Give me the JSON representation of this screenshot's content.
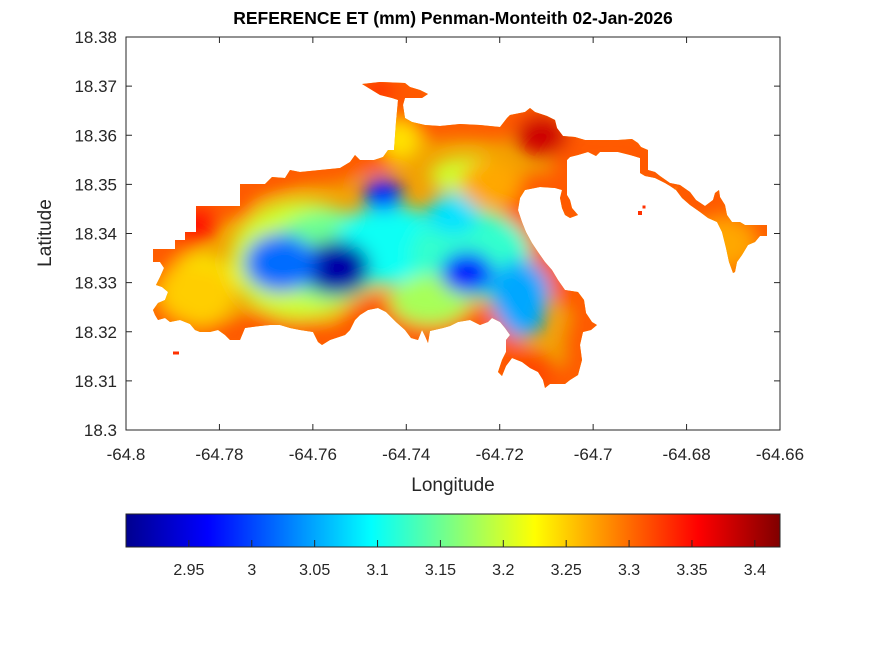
{
  "chart_data": {
    "type": "heatmap",
    "title": "REFERENCE ET (mm) Penman-Monteith 02-Jan-2026",
    "xlabel": "Longitude",
    "ylabel": "Latitude",
    "xlim": [
      -64.8,
      -64.66
    ],
    "ylim": [
      18.3,
      18.38
    ],
    "xticks": [
      -64.8,
      -64.78,
      -64.76,
      -64.74,
      -64.72,
      -64.7,
      -64.68,
      -64.66
    ],
    "xtick_labels": [
      "-64.8",
      "-64.78",
      "-64.76",
      "-64.74",
      "-64.72",
      "-64.7",
      "-64.68",
      "-64.66"
    ],
    "yticks": [
      18.3,
      18.31,
      18.32,
      18.33,
      18.34,
      18.35,
      18.36,
      18.37,
      18.38
    ],
    "ytick_labels": [
      "18.3",
      "18.31",
      "18.32",
      "18.33",
      "18.34",
      "18.35",
      "18.36",
      "18.37",
      "18.38"
    ],
    "grid": false,
    "colormap": "jet",
    "colorbar": {
      "location": "bottom",
      "range": [
        2.9,
        3.42
      ],
      "ticks": [
        2.95,
        3,
        3.05,
        3.1,
        3.15,
        3.2,
        3.25,
        3.3,
        3.35,
        3.4
      ],
      "tick_labels": [
        "2.95",
        "3",
        "3.05",
        "3.1",
        "3.15",
        "3.2",
        "3.25",
        "3.3",
        "3.35",
        "3.4"
      ]
    },
    "field_summary": [
      {
        "lon": -64.755,
        "lat": 18.333,
        "value": 2.92
      },
      {
        "lon": -64.745,
        "lat": 18.348,
        "value": 2.98
      },
      {
        "lon": -64.727,
        "lat": 18.332,
        "value": 2.98
      },
      {
        "lon": -64.767,
        "lat": 18.334,
        "value": 3.02
      },
      {
        "lon": -64.715,
        "lat": 18.322,
        "value": 3.05
      },
      {
        "lon": -64.73,
        "lat": 18.344,
        "value": 3.08
      },
      {
        "lon": -64.785,
        "lat": 18.328,
        "value": 3.25
      },
      {
        "lon": -64.722,
        "lat": 18.35,
        "value": 3.27
      },
      {
        "lon": -64.785,
        "lat": 18.342,
        "value": 3.35
      },
      {
        "lon": -64.711,
        "lat": 18.36,
        "value": 3.38
      },
      {
        "lon": -64.746,
        "lat": 18.369,
        "value": 3.33
      },
      {
        "lon": -64.672,
        "lat": 18.338,
        "value": 3.27
      },
      {
        "lon": -64.713,
        "lat": 18.312,
        "value": 3.32
      }
    ]
  }
}
